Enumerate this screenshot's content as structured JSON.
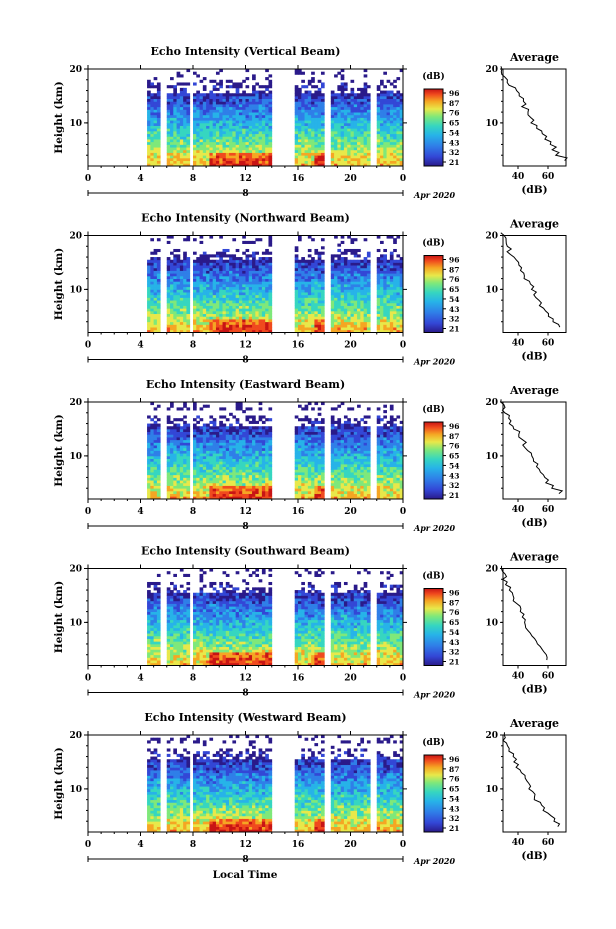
{
  "xlabel_bottom": "Local Time",
  "colorbar_unit": "(dB)",
  "date_label": "Apr 2020",
  "day_label": "8",
  "avg_title": "Average",
  "avg_xlabel": "(dB)",
  "colors": {
    "colormap": [
      "#2a1a8a",
      "#3347d6",
      "#2f7fe8",
      "#27b3e8",
      "#36d6c0",
      "#7fe87a",
      "#e8e84a",
      "#f5a623",
      "#f04a1e",
      "#c81414"
    ]
  },
  "chart_data": [
    {
      "type": "heatmap",
      "title": "Echo Intensity (Vertical Beam)",
      "ylabel": "Height (km)",
      "x_ticks": [
        "0",
        "4",
        "8",
        "12",
        "16",
        "20",
        "0"
      ],
      "y_ticks": [
        "20",
        "10"
      ],
      "xlim": [
        0,
        24
      ],
      "ylim": [
        2,
        20
      ],
      "data_gaps_hours": [
        [
          0,
          4.5
        ],
        [
          5.5,
          5.8
        ],
        [
          7.7,
          7.9
        ],
        [
          14,
          15.6
        ],
        [
          18,
          18.3
        ],
        [
          21.5,
          21.8
        ]
      ],
      "colorbar_ticks": [
        "96",
        "87",
        "76",
        "65",
        "54",
        "43",
        "32",
        "21"
      ],
      "average_profile": {
        "x_ticks": [
          "40",
          "60"
        ],
        "y_ticks": [
          "20",
          "10"
        ],
        "height_km": [
          3,
          4,
          5,
          6,
          7,
          8,
          9,
          10,
          11,
          12,
          13,
          14,
          15,
          16,
          17,
          18,
          19,
          20
        ],
        "db": [
          72,
          66,
          64,
          61,
          58,
          55,
          52,
          50,
          48,
          46,
          44,
          43,
          42,
          38,
          34,
          32,
          30,
          29
        ]
      }
    },
    {
      "type": "heatmap",
      "title": "Echo Intensity (Northward Beam)",
      "ylabel": "Height (km)",
      "x_ticks": [
        "0",
        "4",
        "8",
        "12",
        "16",
        "20",
        "0"
      ],
      "y_ticks": [
        "20",
        "10"
      ],
      "xlim": [
        0,
        24
      ],
      "ylim": [
        2,
        20
      ],
      "data_gaps_hours": [
        [
          0,
          4.5
        ],
        [
          5.5,
          5.8
        ],
        [
          7.7,
          7.9
        ],
        [
          14,
          15.6
        ],
        [
          18,
          18.3
        ],
        [
          21.5,
          21.8
        ]
      ],
      "colorbar_ticks": [
        "96",
        "87",
        "76",
        "65",
        "54",
        "43",
        "32",
        "21"
      ],
      "average_profile": {
        "x_ticks": [
          "40",
          "60"
        ],
        "y_ticks": [
          "20",
          "10"
        ],
        "height_km": [
          3,
          4,
          5,
          6,
          7,
          8,
          9,
          10,
          11,
          12,
          13,
          14,
          15,
          16,
          17,
          18,
          19,
          20
        ],
        "db": [
          68,
          64,
          61,
          58,
          55,
          53,
          51,
          49,
          47,
          45,
          43,
          41,
          39,
          36,
          34,
          32,
          31,
          30
        ]
      }
    },
    {
      "type": "heatmap",
      "title": "Echo Intensity (Eastward Beam)",
      "ylabel": "Height (km)",
      "x_ticks": [
        "0",
        "4",
        "8",
        "12",
        "16",
        "20",
        "0"
      ],
      "y_ticks": [
        "20",
        "10"
      ],
      "xlim": [
        0,
        24
      ],
      "ylim": [
        2,
        20
      ],
      "data_gaps_hours": [
        [
          0,
          4.5
        ],
        [
          5.5,
          5.8
        ],
        [
          7.7,
          7.9
        ],
        [
          14,
          15.6
        ],
        [
          18,
          18.3
        ],
        [
          21.5,
          21.8
        ]
      ],
      "colorbar_ticks": [
        "96",
        "87",
        "76",
        "65",
        "54",
        "43",
        "32",
        "21"
      ],
      "average_profile": {
        "x_ticks": [
          "40",
          "60"
        ],
        "y_ticks": [
          "20",
          "10"
        ],
        "height_km": [
          3,
          4,
          5,
          6,
          7,
          8,
          9,
          10,
          11,
          12,
          13,
          14,
          15,
          16,
          17,
          18,
          19,
          20
        ],
        "db": [
          68,
          63,
          60,
          57,
          54,
          52,
          50,
          48,
          46,
          44,
          42,
          40,
          38,
          35,
          33,
          31,
          30,
          30
        ]
      }
    },
    {
      "type": "heatmap",
      "title": "Echo Intensity (Southward Beam)",
      "ylabel": "Height (km)",
      "x_ticks": [
        "0",
        "4",
        "8",
        "12",
        "16",
        "20",
        "0"
      ],
      "y_ticks": [
        "20",
        "10"
      ],
      "xlim": [
        0,
        24
      ],
      "ylim": [
        2,
        20
      ],
      "data_gaps_hours": [
        [
          0,
          4.5
        ],
        [
          5.5,
          5.8
        ],
        [
          7.7,
          7.9
        ],
        [
          14,
          15.6
        ],
        [
          18,
          18.3
        ],
        [
          21.5,
          21.8
        ]
      ],
      "colorbar_ticks": [
        "96",
        "87",
        "76",
        "65",
        "54",
        "43",
        "32",
        "21"
      ],
      "average_profile": {
        "x_ticks": [
          "40",
          "60"
        ],
        "y_ticks": [
          "20",
          "10"
        ],
        "height_km": [
          3,
          4,
          5,
          6,
          7,
          8,
          9,
          10,
          11,
          12,
          13,
          14,
          15,
          16,
          17,
          18,
          19,
          20
        ],
        "db": [
          60,
          58,
          55,
          52,
          50,
          48,
          46,
          44,
          43,
          42,
          40,
          38,
          37,
          35,
          33,
          31,
          30,
          29
        ]
      }
    },
    {
      "type": "heatmap",
      "title": "Echo Intensity (Westward Beam)",
      "ylabel": "Height (km)",
      "x_ticks": [
        "0",
        "4",
        "8",
        "12",
        "16",
        "20",
        "0"
      ],
      "y_ticks": [
        "20",
        "10"
      ],
      "xlim": [
        0,
        24
      ],
      "ylim": [
        2,
        20
      ],
      "data_gaps_hours": [
        [
          0,
          4.5
        ],
        [
          5.5,
          5.8
        ],
        [
          7.7,
          7.9
        ],
        [
          14,
          15.6
        ],
        [
          18,
          18.3
        ],
        [
          21.5,
          21.8
        ]
      ],
      "colorbar_ticks": [
        "96",
        "87",
        "76",
        "65",
        "54",
        "43",
        "32",
        "21"
      ],
      "average_profile": {
        "x_ticks": [
          "40",
          "60"
        ],
        "y_ticks": [
          "20",
          "10"
        ],
        "height_km": [
          3,
          4,
          5,
          6,
          7,
          8,
          9,
          10,
          11,
          12,
          13,
          14,
          15,
          16,
          17,
          18,
          19,
          20
        ],
        "db": [
          68,
          64,
          61,
          58,
          55,
          52,
          50,
          48,
          46,
          44,
          42,
          40,
          38,
          36,
          34,
          32,
          31,
          30
        ]
      }
    }
  ]
}
